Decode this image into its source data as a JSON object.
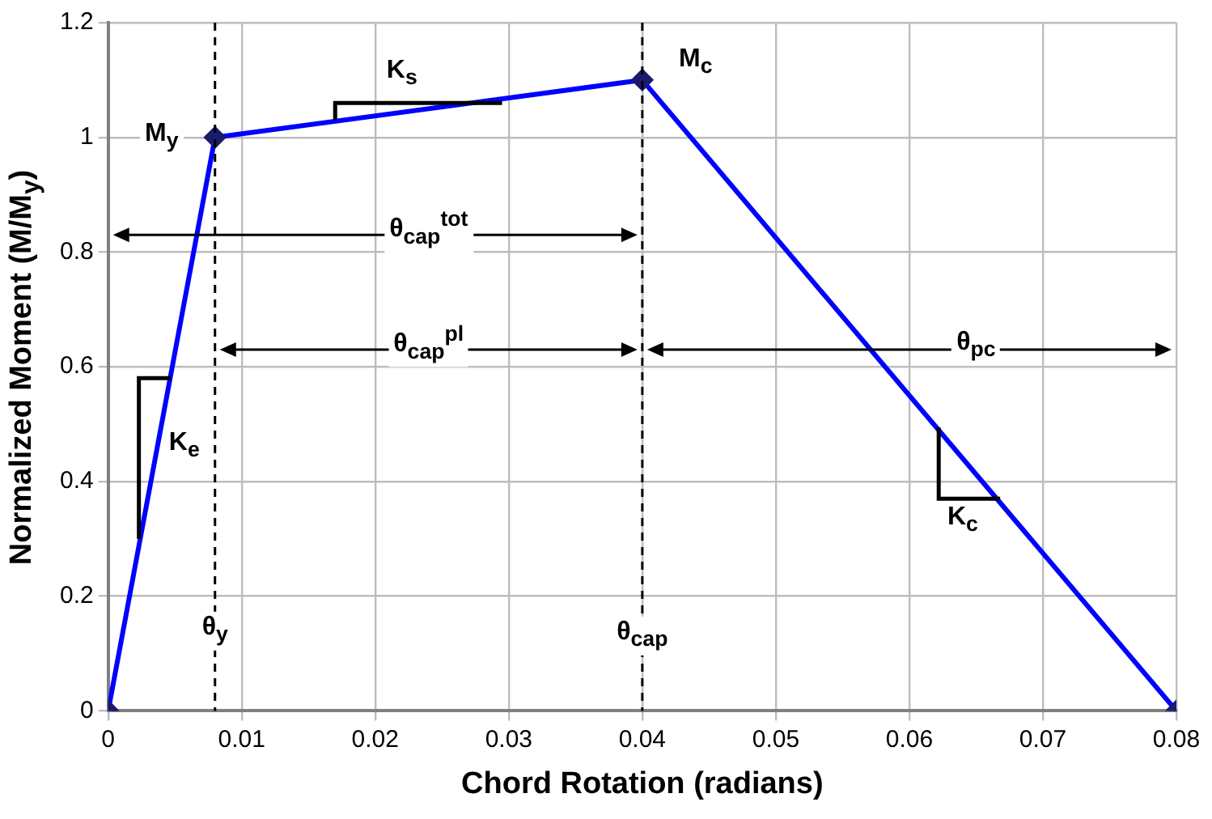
{
  "chart_data": {
    "type": "line",
    "xlabel": "Chord Rotation (radians)",
    "ylabel": "Normalized Moment (M/M$_{y}$)",
    "x": [
      0,
      0.008,
      0.04,
      0.08
    ],
    "series": [
      {
        "color": "#0000ff",
        "values": [
          0,
          1,
          1.1,
          0
        ]
      }
    ],
    "xlim": [
      0,
      0.08
    ],
    "xticks": [
      0,
      0.01,
      0.02,
      0.03,
      0.04,
      0.05,
      0.06,
      0.07,
      0.08
    ],
    "ylim": [
      0,
      1.2
    ],
    "yticks": [
      0,
      0.2,
      0.4,
      0.6,
      0.8,
      1,
      1.2
    ],
    "grid": true,
    "legend": false,
    "marker": "diamond",
    "line_style": "solid",
    "ref_lines": [
      {
        "axis": "x",
        "value": 0.008,
        "color": "#000000",
        "line_style": "dashed"
      },
      {
        "axis": "x",
        "value": 0.04,
        "color": "#000000",
        "line_style": "dashed"
      }
    ],
    "annotations": [
      {
        "text": "M$_{y}$",
        "x": 0.004,
        "y": 1.0
      },
      {
        "text": "M$_{c}$",
        "x": 0.044,
        "y": 1.13
      },
      {
        "text": "K$_{s}$",
        "x": 0.022,
        "y": 1.11
      },
      {
        "text": "K$_{e}$",
        "x": 0.0057,
        "y": 0.46
      },
      {
        "text": "K$_{c}$",
        "x": 0.064,
        "y": 0.33
      },
      {
        "text": "θ$_{y}$",
        "x": 0.008,
        "y": 0.14
      },
      {
        "text": "θ$_{cap}$",
        "x": 0.04,
        "y": 0.13
      },
      "θ$_{cap}$$^{tot}$",
      "θ$_{cap}$$^{pl}$",
      {
        "text": "θ$_{pc}$",
        "x": 0.065,
        "y": 0.635
      }
    ]
  }
}
